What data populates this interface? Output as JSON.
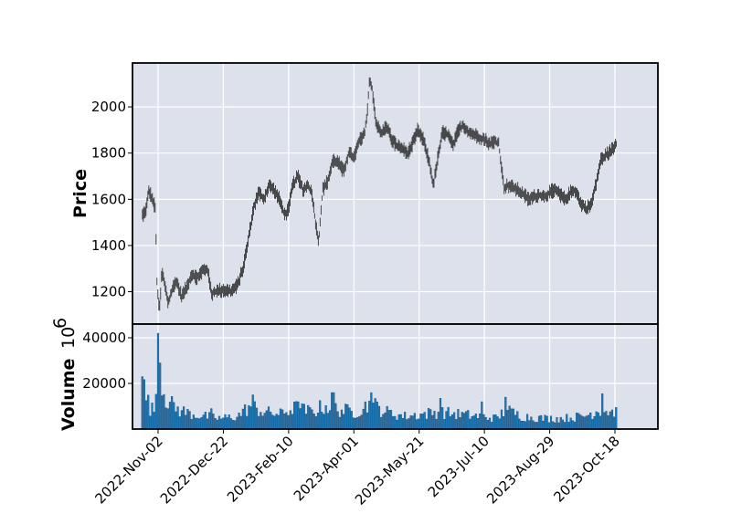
{
  "chart_data": {
    "type": "candlestick",
    "x_tick_labels": [
      "2022-Nov-02",
      "2022-Dec-22",
      "2023-Feb-10",
      "2023-Apr-01",
      "2023-May-21",
      "2023-Jul-10",
      "2023-Aug-29",
      "2023-Oct-18"
    ],
    "price_panel": {
      "ylabel": "Price",
      "yticks": [
        1200,
        1400,
        1600,
        1800,
        2000
      ],
      "ylim": [
        1060,
        2190
      ]
    },
    "volume_panel": {
      "ylabel": "Volume",
      "multiplier_label": "10",
      "multiplier_exponent": "6",
      "yticks": [
        20000,
        40000
      ],
      "tick_labels": [
        "20000",
        "40000"
      ],
      "ylim": [
        0,
        46000
      ]
    },
    "price_path": [
      [
        "2022-10-21",
        1530
      ],
      [
        "2022-10-24",
        1560
      ],
      [
        "2022-10-26",
        1640
      ],
      [
        "2022-10-28",
        1610
      ],
      [
        "2022-10-31",
        1560
      ],
      [
        "2022-11-01",
        1260
      ],
      [
        "2022-11-02",
        1180
      ],
      [
        "2022-11-03",
        1110
      ],
      [
        "2022-11-05",
        1290
      ],
      [
        "2022-11-07",
        1230
      ],
      [
        "2022-11-10",
        1150
      ],
      [
        "2022-11-13",
        1210
      ],
      [
        "2022-11-16",
        1250
      ],
      [
        "2022-11-20",
        1180
      ],
      [
        "2022-11-24",
        1220
      ],
      [
        "2022-11-28",
        1280
      ],
      [
        "2022-12-02",
        1260
      ],
      [
        "2022-12-06",
        1290
      ],
      [
        "2022-12-10",
        1300
      ],
      [
        "2022-12-13",
        1190
      ],
      [
        "2022-12-16",
        1200
      ],
      [
        "2022-12-22",
        1210
      ],
      [
        "2022-12-28",
        1200
      ],
      [
        "2023-01-02",
        1230
      ],
      [
        "2023-01-06",
        1300
      ],
      [
        "2023-01-10",
        1420
      ],
      [
        "2023-01-14",
        1560
      ],
      [
        "2023-01-18",
        1630
      ],
      [
        "2023-01-22",
        1600
      ],
      [
        "2023-01-26",
        1660
      ],
      [
        "2023-01-30",
        1640
      ],
      [
        "2023-02-03",
        1600
      ],
      [
        "2023-02-07",
        1530
      ],
      [
        "2023-02-10",
        1560
      ],
      [
        "2023-02-13",
        1660
      ],
      [
        "2023-02-17",
        1700
      ],
      [
        "2023-02-21",
        1640
      ],
      [
        "2023-02-25",
        1660
      ],
      [
        "2023-02-28",
        1620
      ],
      [
        "2023-03-03",
        1480
      ],
      [
        "2023-03-05",
        1420
      ],
      [
        "2023-03-08",
        1640
      ],
      [
        "2023-03-12",
        1680
      ],
      [
        "2023-03-16",
        1770
      ],
      [
        "2023-03-20",
        1760
      ],
      [
        "2023-03-24",
        1720
      ],
      [
        "2023-03-28",
        1800
      ],
      [
        "2023-04-01",
        1780
      ],
      [
        "2023-04-05",
        1850
      ],
      [
        "2023-04-09",
        1880
      ],
      [
        "2023-04-11",
        1960
      ],
      [
        "2023-04-13",
        2110
      ],
      [
        "2023-04-15",
        2080
      ],
      [
        "2023-04-18",
        1930
      ],
      [
        "2023-04-22",
        1880
      ],
      [
        "2023-04-26",
        1920
      ],
      [
        "2023-04-30",
        1860
      ],
      [
        "2023-05-04",
        1830
      ],
      [
        "2023-05-08",
        1820
      ],
      [
        "2023-05-12",
        1800
      ],
      [
        "2023-05-16",
        1840
      ],
      [
        "2023-05-20",
        1900
      ],
      [
        "2023-05-24",
        1860
      ],
      [
        "2023-05-28",
        1780
      ],
      [
        "2023-06-01",
        1660
      ],
      [
        "2023-06-04",
        1770
      ],
      [
        "2023-06-08",
        1890
      ],
      [
        "2023-06-12",
        1880
      ],
      [
        "2023-06-16",
        1830
      ],
      [
        "2023-06-20",
        1900
      ],
      [
        "2023-06-24",
        1920
      ],
      [
        "2023-06-28",
        1890
      ],
      [
        "2023-07-02",
        1880
      ],
      [
        "2023-07-06",
        1870
      ],
      [
        "2023-07-10",
        1860
      ],
      [
        "2023-07-14",
        1840
      ],
      [
        "2023-07-18",
        1850
      ],
      [
        "2023-07-21",
        1840
      ],
      [
        "2023-07-25",
        1650
      ],
      [
        "2023-07-28",
        1660
      ],
      [
        "2023-08-01",
        1650
      ],
      [
        "2023-08-05",
        1640
      ],
      [
        "2023-08-09",
        1620
      ],
      [
        "2023-08-13",
        1600
      ],
      [
        "2023-08-17",
        1610
      ],
      [
        "2023-08-21",
        1620
      ],
      [
        "2023-08-25",
        1610
      ],
      [
        "2023-08-29",
        1630
      ],
      [
        "2023-09-02",
        1640
      ],
      [
        "2023-09-06",
        1620
      ],
      [
        "2023-09-10",
        1600
      ],
      [
        "2023-09-14",
        1630
      ],
      [
        "2023-09-18",
        1640
      ],
      [
        "2023-09-22",
        1580
      ],
      [
        "2023-09-26",
        1560
      ],
      [
        "2023-09-30",
        1580
      ],
      [
        "2023-10-04",
        1680
      ],
      [
        "2023-10-07",
        1770
      ],
      [
        "2023-10-11",
        1790
      ],
      [
        "2023-10-15",
        1810
      ],
      [
        "2023-10-19",
        1840
      ]
    ],
    "volume_path": [
      [
        "2022-10-21",
        22000
      ],
      [
        "2022-10-24",
        15000
      ],
      [
        "2022-10-27",
        10000
      ],
      [
        "2022-10-31",
        8000
      ],
      [
        "2022-11-02",
        42000
      ],
      [
        "2022-11-04",
        28000
      ],
      [
        "2022-11-07",
        17000
      ],
      [
        "2022-11-11",
        12000
      ],
      [
        "2022-11-18",
        9000
      ],
      [
        "2022-11-28",
        7000
      ],
      [
        "2022-12-08",
        6000
      ],
      [
        "2022-12-20",
        5000
      ],
      [
        "2023-01-02",
        6000
      ],
      [
        "2023-01-12",
        11000
      ],
      [
        "2023-01-22",
        8000
      ],
      [
        "2023-02-04",
        7000
      ],
      [
        "2023-02-14",
        10000
      ],
      [
        "2023-02-28",
        8000
      ],
      [
        "2023-03-10",
        11000
      ],
      [
        "2023-03-22",
        9000
      ],
      [
        "2023-04-02",
        8000
      ],
      [
        "2023-04-14",
        12000
      ],
      [
        "2023-04-26",
        8000
      ],
      [
        "2023-05-10",
        6000
      ],
      [
        "2023-05-24",
        7000
      ],
      [
        "2023-06-05",
        8000
      ],
      [
        "2023-06-20",
        7000
      ],
      [
        "2023-07-06",
        6000
      ],
      [
        "2023-07-20",
        5000
      ],
      [
        "2023-07-26",
        9000
      ],
      [
        "2023-08-08",
        6000
      ],
      [
        "2023-08-24",
        5000
      ],
      [
        "2023-09-08",
        5000
      ],
      [
        "2023-09-24",
        6000
      ],
      [
        "2023-10-06",
        9000
      ],
      [
        "2023-10-19",
        8000
      ]
    ],
    "volume_spikes": [
      [
        "2022-10-21",
        23000
      ],
      [
        "2022-11-02",
        42000
      ],
      [
        "2022-11-04",
        29000
      ],
      [
        "2022-12-13",
        9000
      ],
      [
        "2023-01-14",
        15000
      ],
      [
        "2023-02-18",
        12000
      ],
      [
        "2023-03-16",
        16000
      ],
      [
        "2023-04-14",
        16000
      ],
      [
        "2023-06-06",
        13500
      ],
      [
        "2023-07-08",
        12000
      ],
      [
        "2023-07-26",
        14000
      ],
      [
        "2023-10-08",
        15500
      ]
    ],
    "colors": {
      "up": "#1f77b4",
      "candle": "#222222",
      "panel": "#dde1ec",
      "grid": "#ffffff",
      "volume": "#1f77b4"
    },
    "grid": true
  }
}
